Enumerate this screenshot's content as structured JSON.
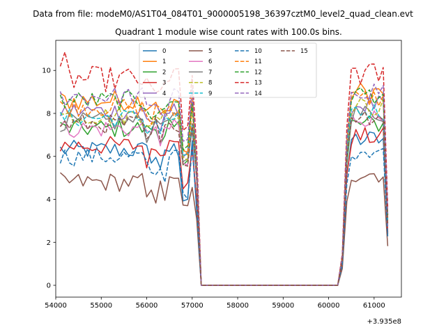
{
  "chart_data": {
    "type": "line",
    "suptitle": "Data from file: modeM0/AS1T04_084T01_9000005198_36397cztM0_level2_quad_clean.evt",
    "title": "Quadrant 1 module wise count rates with 100.0s bins.",
    "xlabel": "",
    "ylabel": "",
    "x_offset_label": "+3.935e8",
    "xlim": [
      54000,
      61600
    ],
    "ylim": [
      -0.55,
      11.4
    ],
    "xticks": [
      54000,
      55000,
      56000,
      57000,
      58000,
      59000,
      60000,
      61000
    ],
    "xtick_labels": [
      "54000",
      "55000",
      "56000",
      "57000",
      "58000",
      "59000",
      "60000",
      "61000"
    ],
    "yticks": [
      0,
      2,
      4,
      6,
      8,
      10
    ],
    "ytick_labels": [
      "0",
      "2",
      "4",
      "6",
      "8",
      "10"
    ],
    "legend_position": "top-center",
    "legend_columns": 4,
    "series": [
      {
        "name": "0",
        "color": "#1f77b4",
        "dash": "solid",
        "base": 6.3,
        "amp": 0.45,
        "after": 6.8,
        "min_dip": 3.8
      },
      {
        "name": "1",
        "color": "#ff7f0e",
        "dash": "solid",
        "base": 8.6,
        "amp": 0.5,
        "after": 9.0,
        "min_dip": 6.0
      },
      {
        "name": "2",
        "color": "#2ca02c",
        "dash": "solid",
        "base": 7.3,
        "amp": 0.45,
        "after": 7.5,
        "min_dip": 5.6
      },
      {
        "name": "3",
        "color": "#d62728",
        "dash": "solid",
        "base": 6.5,
        "amp": 0.45,
        "after": 6.9,
        "min_dip": 4.4
      },
      {
        "name": "4",
        "color": "#9467bd",
        "dash": "solid",
        "base": 8.1,
        "amp": 0.45,
        "after": 8.4,
        "min_dip": 5.8
      },
      {
        "name": "5",
        "color": "#8c564b",
        "dash": "solid",
        "base": 4.8,
        "amp": 0.45,
        "after": 5.2,
        "min_dip": 3.4
      },
      {
        "name": "6",
        "color": "#e377c2",
        "dash": "solid",
        "base": 7.3,
        "amp": 0.45,
        "after": 7.8,
        "min_dip": 5.4
      },
      {
        "name": "7",
        "color": "#7f7f7f",
        "dash": "solid",
        "base": 7.6,
        "amp": 0.45,
        "after": 8.0,
        "min_dip": 5.6
      },
      {
        "name": "8",
        "color": "#bcbd22",
        "dash": "dashed",
        "base": 7.9,
        "amp": 0.45,
        "after": 8.3,
        "min_dip": 5.8
      },
      {
        "name": "9",
        "color": "#17becf",
        "dash": "dashed",
        "base": 7.8,
        "amp": 0.45,
        "after": 8.1,
        "min_dip": 5.7
      },
      {
        "name": "10",
        "color": "#1f77b4",
        "dash": "dashed",
        "base": 6.0,
        "amp": 0.45,
        "after": 6.3,
        "min_dip": 4.0
      },
      {
        "name": "11",
        "color": "#ff7f0e",
        "dash": "dashed",
        "base": 8.3,
        "amp": 0.45,
        "after": 8.7,
        "min_dip": 6.0
      },
      {
        "name": "12",
        "color": "#2ca02c",
        "dash": "dashed",
        "base": 8.6,
        "amp": 0.45,
        "after": 8.9,
        "min_dip": 6.2
      },
      {
        "name": "13",
        "color": "#d62728",
        "dash": "dashed",
        "base": 9.6,
        "amp": 0.6,
        "after": 9.8,
        "min_dip": 7.0
      },
      {
        "name": "14",
        "color": "#9467bd",
        "dash": "dashed",
        "base": 8.8,
        "amp": 0.45,
        "after": 9.1,
        "min_dip": 6.4
      },
      {
        "name": "15",
        "color": "#8c564b",
        "dash": "dashed",
        "base": 7.5,
        "amp": 0.45,
        "after": 7.9,
        "min_dip": 5.5
      }
    ],
    "segments": {
      "first_start": 54100,
      "first_end": 57000,
      "drop_end": 57200,
      "gap_end": 60200,
      "rise_end": 60400,
      "second_end": 61200,
      "last": 61300,
      "bin": 100,
      "gap_value": 0.0
    }
  }
}
